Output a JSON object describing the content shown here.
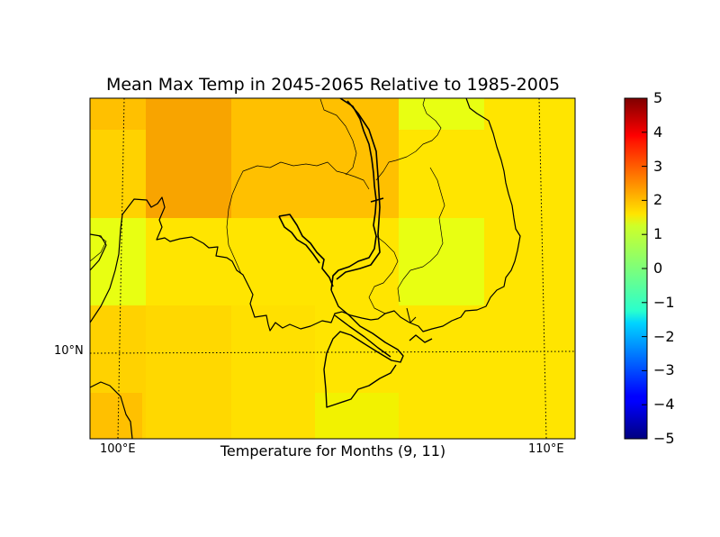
{
  "title": "Mean Max Temp in 2045-2065 Relative to 1985-2005",
  "subtitle": "Temperature for Months (9, 11)",
  "map": {
    "lat_labels": [
      "10°N"
    ],
    "lon_labels": [
      "100°E",
      "110°E"
    ]
  },
  "colorbar": {
    "colormap": "jet",
    "min": -5,
    "max": 5,
    "ticks": [
      "5",
      "4",
      "3",
      "2",
      "1",
      "0",
      "−1",
      "−2",
      "−3",
      "−4",
      "−5"
    ]
  },
  "colors": {
    "orange": "#f8a400",
    "amber": "#ffc000",
    "gold": "#ffd200",
    "yellow": "#ffe500",
    "lime": "#e8ff12"
  }
}
